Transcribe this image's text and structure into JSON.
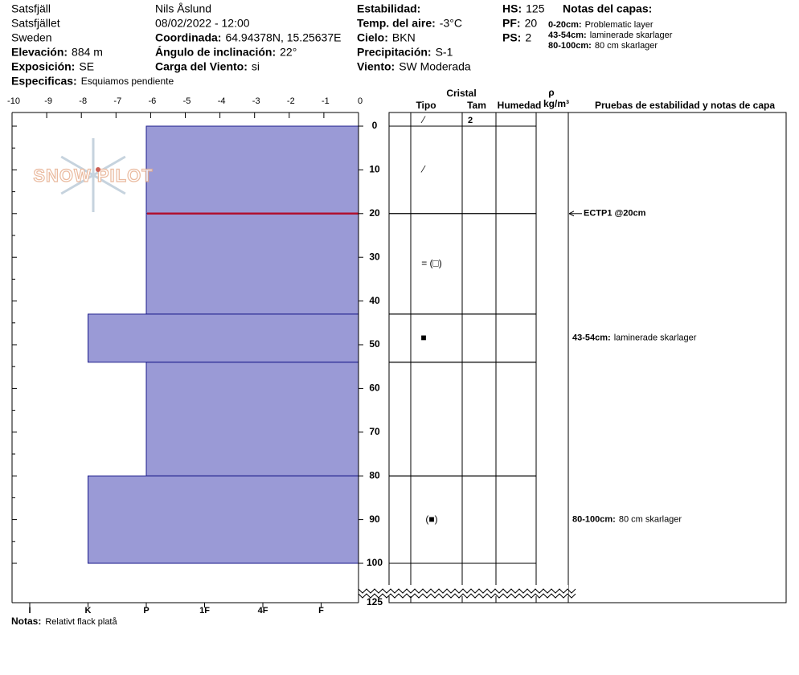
{
  "header": {
    "location": [
      "Satsfjäll",
      "Satsfjället",
      "Sweden"
    ],
    "elevation": {
      "label": "Elevación:",
      "value": "884 m"
    },
    "aspect": {
      "label": "Exposición:",
      "value": "SE"
    },
    "specifics": {
      "label": "Especificas:",
      "value": "Esquiamos pendiente"
    },
    "observer": "Nils Åslund",
    "datetime": "08/02/2022 - 12:00",
    "coordinates": {
      "label": "Coordinada:",
      "value": "64.94378N, 15.25637E"
    },
    "slope": {
      "label": "Ángulo de inclinación:",
      "value": "22°"
    },
    "wind_loading": {
      "label": "Carga del Viento:",
      "value": "si"
    },
    "stability": {
      "label": "Estabilidad:"
    },
    "air_temp": {
      "label": "Temp. del aire:",
      "value": "-3°C"
    },
    "sky": {
      "label": "Cielo:",
      "value": "BKN"
    },
    "precipitation": {
      "label": "Precipitación:",
      "value": "S-1"
    },
    "wind": {
      "label": "Viento:",
      "value": "SW Moderada"
    },
    "hs": {
      "label": "HS:",
      "value": "125"
    },
    "pf": {
      "label": "PF:",
      "value": "20"
    },
    "ps": {
      "label": "PS:",
      "value": "2"
    },
    "layer_notes": {
      "title": "Notas del capas:",
      "items": [
        {
          "label": "0-20cm:",
          "text": "Problematic layer"
        },
        {
          "label": "43-54cm:",
          "text": "laminerade skarlager"
        },
        {
          "label": "80-100cm:",
          "text": "80 cm skarlager"
        }
      ]
    }
  },
  "logo": "SNOW PILOT",
  "profile": {
    "xlim": [
      -10,
      0
    ],
    "xticks": [
      -10,
      -9,
      -8,
      -7,
      -6,
      -5,
      -4,
      -3,
      -2,
      -1,
      0
    ],
    "depth_ticks": [
      0,
      10,
      20,
      30,
      40,
      50,
      60,
      70,
      80,
      90,
      100
    ],
    "depth_max": 125,
    "hardness_labels": [
      "I",
      "K",
      "P",
      "1F",
      "4F",
      "F"
    ],
    "layers": [
      {
        "top": 0,
        "bottom": 20,
        "hardness": "P",
        "grain": "⁄"
      },
      {
        "top": 20,
        "bottom": 43,
        "hardness": "P",
        "grain": "= (□)"
      },
      {
        "top": 43,
        "bottom": 54,
        "hardness": "K",
        "grain": "■",
        "comment": {
          "label": "43-54cm:",
          "text": "laminerade skarlager"
        }
      },
      {
        "top": 54,
        "bottom": 80,
        "hardness": "P"
      },
      {
        "top": 80,
        "bottom": 100,
        "hardness": "K",
        "grain": "(■)",
        "comment": {
          "label": "80-100cm:",
          "text": "80 cm skarlager"
        }
      }
    ],
    "stability_tests": [
      {
        "depth": 20,
        "text": "ECTP1 @20cm"
      }
    ]
  },
  "table": {
    "crystal": "Cristal",
    "type": "Tipo",
    "size": "Tam",
    "moisture": "Humedad",
    "density": "ρ",
    "density_unit": "kg/m³",
    "tests": "Pruebas de estabilidad y notas de capa",
    "summary_type": "⁄",
    "summary_size": "2"
  },
  "footer": {
    "label": "Notas:",
    "text": "Relativt flack platå"
  }
}
